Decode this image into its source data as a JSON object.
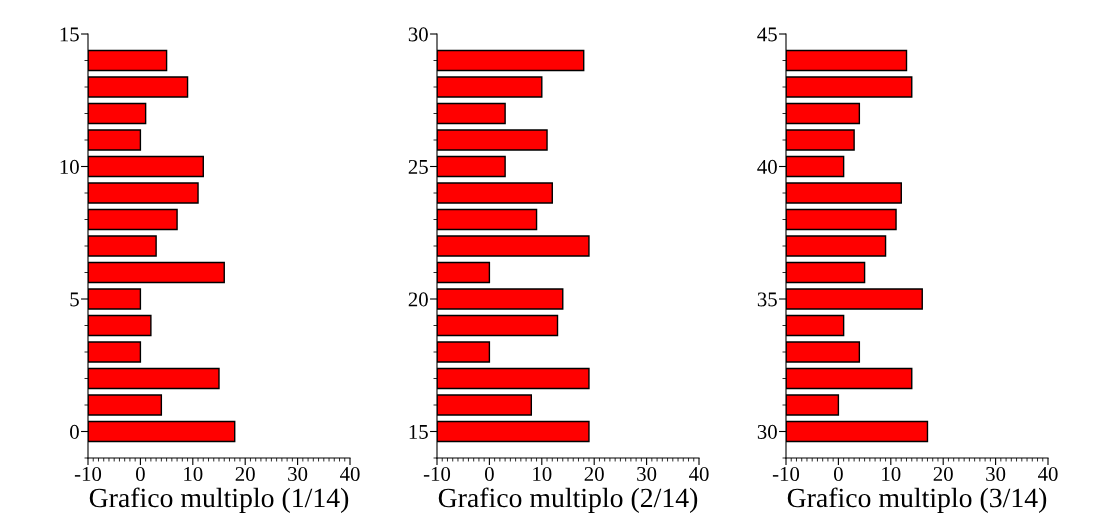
{
  "chart_data": [
    {
      "type": "bar",
      "orientation": "horizontal",
      "title": "Grafico multiplo (1/14)",
      "x": [
        0,
        1,
        2,
        3,
        4,
        5,
        6,
        7,
        8,
        9,
        10,
        11,
        12,
        13,
        14
      ],
      "base": [
        -10,
        -10,
        -10,
        -10,
        -10,
        -10,
        -10,
        -10,
        -10,
        -10,
        -10,
        -10,
        -10,
        -10,
        -10
      ],
      "values": [
        28,
        14,
        25,
        10,
        12,
        10,
        26,
        13,
        17,
        21,
        22,
        10,
        11,
        19,
        15
      ],
      "color": "#ff0000",
      "xlim": [
        -10,
        40
      ],
      "xticks": [
        -10,
        0,
        10,
        20,
        30,
        40
      ],
      "ylim": [
        -1,
        15
      ],
      "yticks": [
        0,
        5,
        10,
        15
      ],
      "grid": false,
      "legend": false
    },
    {
      "type": "bar",
      "orientation": "horizontal",
      "title": "Grafico multiplo (2/14)",
      "x": [
        15,
        16,
        17,
        18,
        19,
        20,
        21,
        22,
        23,
        24,
        25,
        26,
        27,
        28,
        29
      ],
      "base": [
        -10,
        -10,
        -10,
        -10,
        -10,
        -10,
        -10,
        -10,
        -10,
        -10,
        -10,
        -10,
        -10,
        -10,
        -10
      ],
      "values": [
        29,
        18,
        29,
        10,
        23,
        24,
        10,
        29,
        19,
        22,
        13,
        21,
        13,
        20,
        28
      ],
      "color": "#ff0000",
      "xlim": [
        -10,
        40
      ],
      "xticks": [
        -10,
        0,
        10,
        20,
        30,
        40
      ],
      "ylim": [
        14,
        30
      ],
      "yticks": [
        15,
        20,
        25,
        30
      ],
      "grid": false,
      "legend": false
    },
    {
      "type": "bar",
      "orientation": "horizontal",
      "title": "Grafico multiplo (3/14)",
      "x": [
        30,
        31,
        32,
        33,
        34,
        35,
        36,
        37,
        38,
        39,
        40,
        41,
        42,
        43,
        44
      ],
      "base": [
        -10,
        -10,
        -10,
        -10,
        -10,
        -10,
        -10,
        -10,
        -10,
        -10,
        -10,
        -10,
        -10,
        -10,
        -10
      ],
      "values": [
        27,
        10,
        24,
        14,
        11,
        26,
        15,
        19,
        21,
        22,
        11,
        13,
        14,
        24,
        23
      ],
      "color": "#ff0000",
      "xlim": [
        -10,
        40
      ],
      "xticks": [
        -10,
        0,
        10,
        20,
        30,
        40
      ],
      "ylim": [
        29,
        45
      ],
      "yticks": [
        30,
        35,
        40,
        45
      ],
      "grid": false,
      "legend": false
    }
  ]
}
